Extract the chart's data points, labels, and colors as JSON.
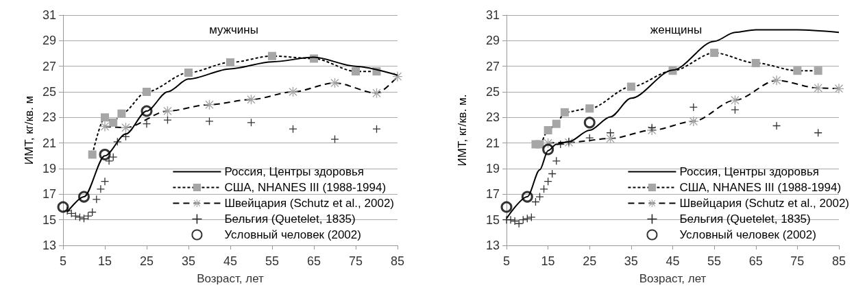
{
  "chart_data": [
    {
      "type": "line",
      "title": "мужчины",
      "xlabel": "Возраст, лет",
      "ylabel": "ИМТ, кг/кв. м",
      "xlim": [
        5,
        85
      ],
      "xticks": [
        5,
        15,
        25,
        35,
        45,
        55,
        65,
        75,
        85
      ],
      "ylim": [
        13,
        31
      ],
      "yticks": [
        13,
        15,
        17,
        19,
        21,
        23,
        25,
        27,
        29,
        31
      ],
      "grid": "y",
      "legend": "bottom right",
      "series": [
        {
          "name": "Россия, Центры здоровья",
          "type": "line",
          "color": "#000000",
          "marker": "none",
          "line_style": "solid",
          "x": [
            6,
            10,
            15,
            20,
            25,
            30,
            35,
            45,
            55,
            65,
            75,
            85
          ],
          "values": [
            15.6,
            16.8,
            20.0,
            21.7,
            23.5,
            25.0,
            26.0,
            26.8,
            27.35,
            27.7,
            27.0,
            26.3
          ]
        },
        {
          "name": "США, NHANES III (1988-1994)",
          "type": "line",
          "color": "#a6a6a6",
          "marker": "square",
          "line_style": "dotted",
          "x": [
            12,
            15,
            17,
            19,
            25,
            35,
            45,
            55,
            65,
            75,
            80
          ],
          "values": [
            20.1,
            23.0,
            22.6,
            23.3,
            25.0,
            26.5,
            27.3,
            27.8,
            27.6,
            26.6,
            26.6
          ]
        },
        {
          "name": "Швейцария (Schutz et al., 2002)",
          "type": "line",
          "color": "#a6a6a6",
          "marker": "star",
          "line_style": "dashed",
          "x": [
            15,
            20,
            30,
            40,
            50,
            60,
            70,
            80,
            85
          ],
          "values": [
            22.3,
            22.2,
            23.5,
            24.0,
            24.4,
            25.0,
            25.7,
            24.9,
            26.2
          ]
        },
        {
          "name": "Бельгия (Quetelet, 1835)",
          "type": "scatter",
          "color": "#000000",
          "marker": "cross",
          "x": [
            6,
            7,
            8,
            9,
            10,
            11,
            12,
            13,
            14,
            15,
            16,
            17,
            18,
            20,
            25,
            30,
            40,
            50,
            60,
            70,
            80
          ],
          "values": [
            15.7,
            15.5,
            15.3,
            15.2,
            15.1,
            15.3,
            15.6,
            16.6,
            17.4,
            18.0,
            19.6,
            19.9,
            21.1,
            21.5,
            22.5,
            22.8,
            22.7,
            22.6,
            22.1,
            21.3,
            22.1
          ]
        },
        {
          "name": "Условный человек (2002)",
          "type": "scatter",
          "color": "#000000",
          "marker": "circle",
          "x": [
            5,
            10,
            15,
            25
          ],
          "values": [
            16.0,
            16.8,
            20.1,
            23.5
          ]
        }
      ]
    },
    {
      "type": "line",
      "title": "женщины",
      "xlabel": "Возраст, лет",
      "ylabel": "ИМТ, кг/кв. м.",
      "xlim": [
        5,
        85
      ],
      "xticks": [
        5,
        15,
        25,
        35,
        45,
        55,
        65,
        75,
        85
      ],
      "ylim": [
        13,
        31
      ],
      "yticks": [
        13,
        15,
        17,
        19,
        21,
        23,
        25,
        27,
        29,
        31
      ],
      "grid": "y",
      "legend": "bottom right",
      "series": [
        {
          "name": "Россия, Центры здоровья",
          "type": "line",
          "color": "#000000",
          "marker": "none",
          "line_style": "solid",
          "x": [
            5,
            10,
            13,
            15,
            17,
            20,
            25,
            30,
            35,
            45,
            55,
            60,
            65,
            75,
            85
          ],
          "values": [
            15.1,
            16.8,
            18.9,
            20.4,
            20.9,
            21.1,
            22.0,
            23.05,
            24.5,
            26.7,
            28.95,
            29.65,
            29.85,
            29.85,
            29.65
          ]
        },
        {
          "name": "США, NHANES III (1988-1994)",
          "type": "line",
          "color": "#a6a6a6",
          "marker": "square",
          "line_style": "dotted",
          "x": [
            12,
            13,
            15,
            17,
            19,
            25,
            35,
            45,
            55,
            65,
            75,
            80
          ],
          "values": [
            20.9,
            20.9,
            22.0,
            22.5,
            23.4,
            23.7,
            25.4,
            26.65,
            28.05,
            27.25,
            26.65,
            26.65
          ]
        },
        {
          "name": "Швейцария (Schutz et al., 2002)",
          "type": "line",
          "color": "#a6a6a6",
          "marker": "star",
          "line_style": "dashed",
          "x": [
            15,
            20,
            30,
            40,
            50,
            60,
            70,
            80,
            85
          ],
          "values": [
            21.0,
            21.05,
            21.35,
            22.0,
            22.7,
            24.35,
            25.9,
            25.3,
            25.25
          ]
        },
        {
          "name": "Бельгия (Quetelet, 1835)",
          "type": "scatter",
          "color": "#000000",
          "marker": "cross",
          "x": [
            5,
            6,
            7,
            8,
            9,
            10,
            11,
            12,
            13,
            14,
            15,
            16,
            17,
            18,
            20,
            25,
            30,
            40,
            50,
            60,
            70,
            80
          ],
          "values": [
            15.0,
            15.0,
            14.9,
            14.7,
            15.0,
            15.1,
            15.2,
            16.4,
            16.8,
            17.4,
            18.0,
            18.6,
            19.6,
            20.9,
            21.1,
            21.4,
            21.8,
            22.2,
            23.8,
            23.6,
            22.35,
            21.8
          ]
        },
        {
          "name": "Условный человек (2002)",
          "type": "scatter",
          "color": "#000000",
          "marker": "circle",
          "x": [
            5,
            10,
            15,
            25
          ],
          "values": [
            16.0,
            16.8,
            20.5,
            22.6
          ]
        }
      ]
    }
  ]
}
